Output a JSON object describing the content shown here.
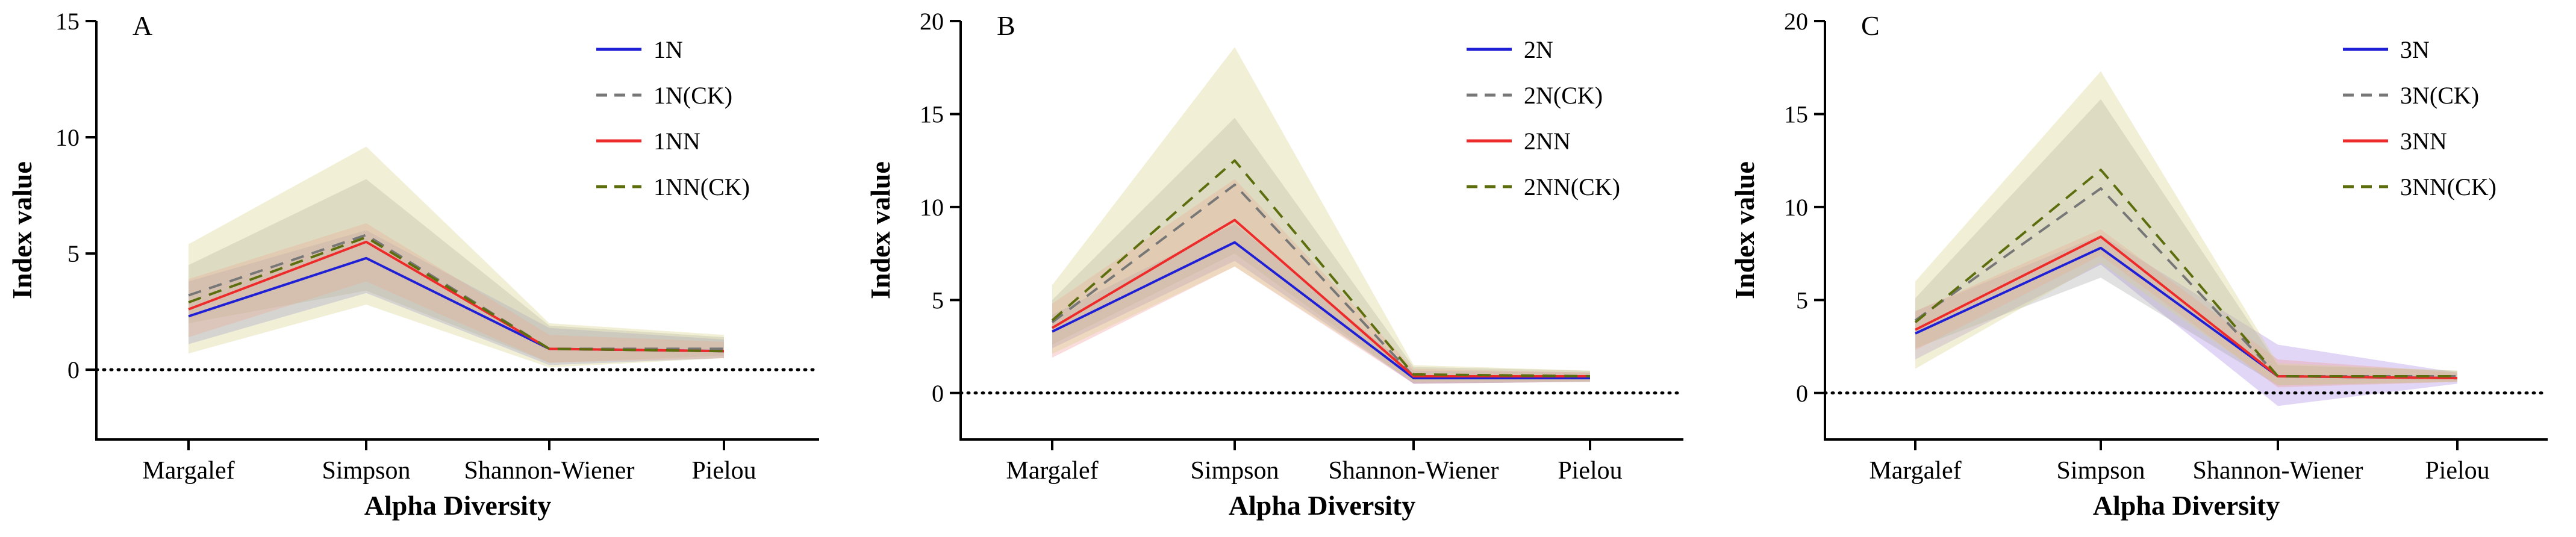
{
  "chart_data": [
    {
      "type": "line",
      "panel_label": "A",
      "xlabel": "Alpha Diversity",
      "ylabel": "Index value",
      "categories": [
        "Margalef",
        "Simpson",
        "Shannon-Wiener",
        "Pielou"
      ],
      "ylim": [
        -3,
        15
      ],
      "yticks": [
        0,
        5,
        10,
        15
      ],
      "reference_line_y": 0,
      "legend_position": "top-right",
      "series": [
        {
          "name": "1N",
          "style": "solid",
          "color": "#1f1fd6",
          "band_color": "#8a8ae6",
          "values": [
            2.3,
            4.8,
            0.9,
            0.8
          ],
          "lower": [
            1.1,
            3.3,
            0.2,
            0.5
          ],
          "upper": [
            3.8,
            6.0,
            1.8,
            1.3
          ]
        },
        {
          "name": "1N(CK)",
          "style": "dashed",
          "color": "#777777",
          "band_color": "#a9a9a9",
          "values": [
            3.2,
            5.8,
            0.9,
            0.9
          ],
          "lower": [
            2.0,
            3.4,
            0.3,
            0.6
          ],
          "upper": [
            4.5,
            8.2,
            1.9,
            1.4
          ]
        },
        {
          "name": "1NN",
          "style": "solid",
          "color": "#ee2b2b",
          "band_color": "#f29a9a",
          "values": [
            2.6,
            5.5,
            0.9,
            0.8
          ],
          "lower": [
            1.4,
            3.8,
            0.3,
            0.5
          ],
          "upper": [
            3.9,
            6.3,
            1.5,
            1.2
          ]
        },
        {
          "name": "1NN(CK)",
          "style": "dashed",
          "color": "#5c6e0e",
          "band_color": "#d8d08a",
          "values": [
            2.9,
            5.7,
            0.9,
            0.8
          ],
          "lower": [
            0.7,
            2.8,
            0.1,
            0.5
          ],
          "upper": [
            5.4,
            9.6,
            2.0,
            1.5
          ]
        }
      ]
    },
    {
      "type": "line",
      "panel_label": "B",
      "xlabel": "Alpha Diversity",
      "ylabel": "Index value",
      "categories": [
        "Margalef",
        "Simpson",
        "Shannon-Wiener",
        "Pielou"
      ],
      "ylim": [
        -2.5,
        20
      ],
      "yticks": [
        0,
        5,
        10,
        15,
        20
      ],
      "reference_line_y": 0,
      "legend_position": "top-right",
      "series": [
        {
          "name": "2N",
          "style": "solid",
          "color": "#1f1fd6",
          "band_color": "#8a8ae6",
          "values": [
            3.3,
            8.1,
            0.8,
            0.8
          ],
          "lower": [
            2.4,
            7.1,
            0.5,
            0.6
          ],
          "upper": [
            4.2,
            9.1,
            1.2,
            1.1
          ]
        },
        {
          "name": "2N(CK)",
          "style": "dashed",
          "color": "#777777",
          "band_color": "#a9a9a9",
          "values": [
            3.8,
            11.2,
            0.9,
            0.9
          ],
          "lower": [
            2.6,
            7.5,
            0.5,
            0.6
          ],
          "upper": [
            5.0,
            14.8,
            1.4,
            1.2
          ]
        },
        {
          "name": "2NN",
          "style": "solid",
          "color": "#ee2b2b",
          "band_color": "#f29a9a",
          "values": [
            3.5,
            9.3,
            0.9,
            0.9
          ],
          "lower": [
            1.9,
            6.8,
            0.5,
            0.6
          ],
          "upper": [
            4.8,
            11.5,
            1.3,
            1.1
          ]
        },
        {
          "name": "2NN(CK)",
          "style": "dashed",
          "color": "#5c6e0e",
          "band_color": "#d8d08a",
          "values": [
            3.9,
            12.5,
            1.0,
            0.9
          ],
          "lower": [
            2.1,
            6.8,
            0.6,
            0.6
          ],
          "upper": [
            5.8,
            18.6,
            1.5,
            1.2
          ]
        }
      ]
    },
    {
      "type": "line",
      "panel_label": "C",
      "xlabel": "Alpha Diversity",
      "ylabel": "Index value",
      "categories": [
        "Margalef",
        "Simpson",
        "Shannon-Wiener",
        "Pielou"
      ],
      "ylim": [
        -2.5,
        20
      ],
      "yticks": [
        0,
        5,
        10,
        15,
        20
      ],
      "reference_line_y": 0,
      "legend_position": "top-right",
      "series": [
        {
          "name": "3N",
          "style": "solid",
          "color": "#1f1fd6",
          "band_color": "#a98ae6",
          "values": [
            3.2,
            7.8,
            0.9,
            0.8
          ],
          "lower": [
            1.8,
            6.9,
            -0.7,
            0.5
          ],
          "upper": [
            4.4,
            8.5,
            2.6,
            1.1
          ]
        },
        {
          "name": "3N(CK)",
          "style": "dashed",
          "color": "#777777",
          "band_color": "#a9a9a9",
          "values": [
            3.9,
            11.0,
            0.9,
            0.9
          ],
          "lower": [
            2.4,
            6.2,
            0.4,
            0.6
          ],
          "upper": [
            5.1,
            15.8,
            1.5,
            1.2
          ]
        },
        {
          "name": "3NN",
          "style": "solid",
          "color": "#ee2b2b",
          "band_color": "#f29a9a",
          "values": [
            3.4,
            8.4,
            0.9,
            0.8
          ],
          "lower": [
            2.3,
            7.4,
            0.3,
            0.6
          ],
          "upper": [
            4.4,
            8.8,
            1.8,
            1.1
          ]
        },
        {
          "name": "3NN(CK)",
          "style": "dashed",
          "color": "#5c6e0e",
          "band_color": "#d8d08a",
          "values": [
            3.8,
            12.0,
            0.9,
            0.9
          ],
          "lower": [
            1.3,
            7.0,
            0.4,
            0.6
          ],
          "upper": [
            6.0,
            17.3,
            1.6,
            1.2
          ]
        }
      ]
    }
  ]
}
